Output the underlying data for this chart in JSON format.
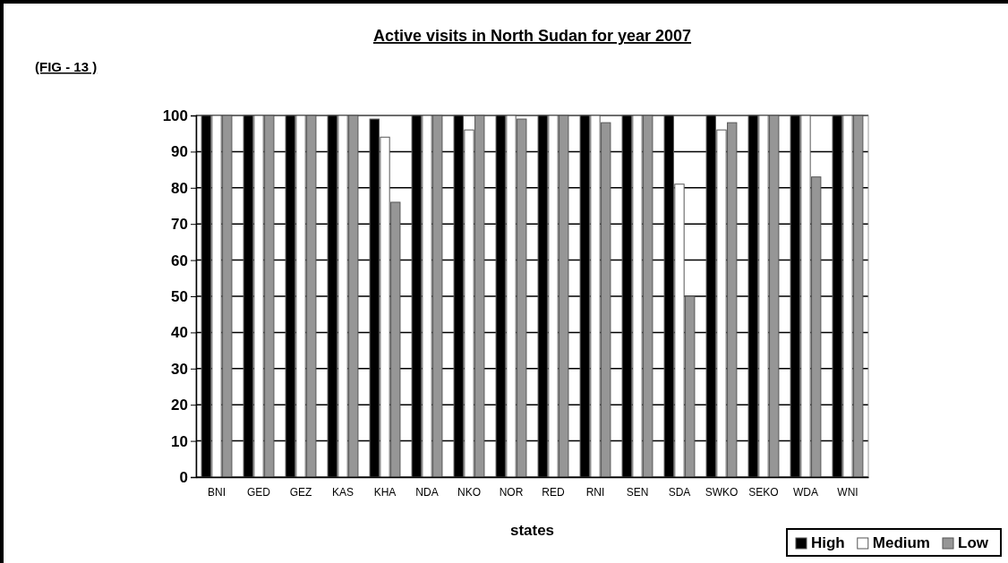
{
  "chart_data": {
    "type": "bar",
    "title": "Active visits in North Sudan for year 2007",
    "xlabel": "states",
    "annotations": [
      "(FIG - 13 )"
    ],
    "categories": [
      "BNI",
      "GED",
      "GEZ",
      "KAS",
      "KHA",
      "NDA",
      "NKO",
      "NOR",
      "RED",
      "RNI",
      "SEN",
      "SDA",
      "SWKO",
      "SEKO",
      "WDA",
      "WNI"
    ],
    "series": [
      {
        "name": "High",
        "color": "#000000",
        "values": [
          100,
          100,
          100,
          100,
          99,
          100,
          100,
          100,
          100,
          100,
          100,
          100,
          100,
          100,
          100,
          100
        ]
      },
      {
        "name": "Medium",
        "color": "#ffffff",
        "values": [
          100,
          100,
          100,
          100,
          94,
          100,
          96,
          100,
          100,
          100,
          100,
          81,
          96,
          100,
          100,
          100
        ]
      },
      {
        "name": "Low",
        "color": "#969696",
        "values": [
          100,
          100,
          100,
          100,
          76,
          100,
          100,
          99,
          100,
          98,
          100,
          50,
          98,
          100,
          83,
          100
        ]
      }
    ],
    "ylim": [
      0,
      100
    ],
    "yticks": [
      0,
      10,
      20,
      30,
      40,
      50,
      60,
      70,
      80,
      90,
      100
    ],
    "grid": "y",
    "legend": "bottom right"
  }
}
